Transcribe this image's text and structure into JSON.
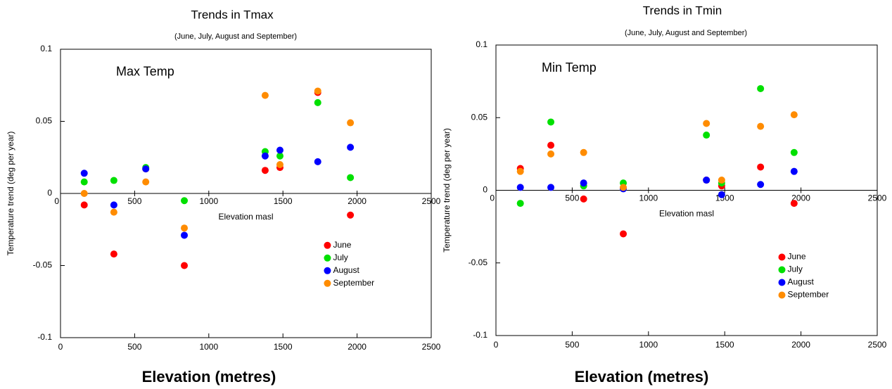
{
  "chart_data": [
    {
      "type": "scatter",
      "title": "Trends in Tmax",
      "subtitle": "(June, July, August and September)",
      "annotation": "Max Temp",
      "x_label": "Elevation masl",
      "y_label": "Temperature trend (deg per year)",
      "footer": "Elevation (metres)",
      "x": [
        160,
        360,
        575,
        835,
        1380,
        1480,
        1735,
        1955
      ],
      "series": [
        {
          "name": "June",
          "color": "#ff0000",
          "values": [
            -0.008,
            -0.042,
            0.017,
            -0.05,
            0.016,
            0.018,
            0.07,
            -0.015
          ]
        },
        {
          "name": "July",
          "color": "#00e000",
          "values": [
            0.008,
            0.009,
            0.018,
            -0.005,
            0.029,
            0.026,
            0.063,
            0.011
          ]
        },
        {
          "name": "August",
          "color": "#0000ff",
          "values": [
            0.014,
            -0.008,
            0.017,
            -0.029,
            0.026,
            0.03,
            0.022,
            0.032
          ]
        },
        {
          "name": "September",
          "color": "#ff8c00",
          "values": [
            0,
            -0.013,
            0.008,
            -0.024,
            0.068,
            0.02,
            0.071,
            0.049
          ]
        }
      ],
      "xlim": [
        0,
        2500
      ],
      "xticks": [
        0,
        500,
        1000,
        1500,
        2000,
        2500
      ],
      "ylim": [
        -0.1,
        0.1
      ],
      "yticks": [
        -0.1,
        -0.05,
        0,
        0.05,
        0.1
      ],
      "legend": "lower right"
    },
    {
      "type": "scatter",
      "title": "Trends in Tmin",
      "subtitle": "(June, July, August and September)",
      "annotation": "Min Temp",
      "x_label": "Elevation masl",
      "y_label": "Temperature trend (deg per year)",
      "footer": "Elevation (metres)",
      "x": [
        160,
        360,
        575,
        835,
        1380,
        1480,
        1735,
        1955
      ],
      "series": [
        {
          "name": "June",
          "color": "#ff0000",
          "values": [
            0.015,
            0.031,
            -0.006,
            -0.03,
            0.007,
            0.003,
            0.016,
            -0.009
          ]
        },
        {
          "name": "July",
          "color": "#00e000",
          "values": [
            -0.009,
            0.047,
            0.003,
            0.005,
            0.038,
            0.005,
            0.07,
            0.026
          ]
        },
        {
          "name": "August",
          "color": "#0000ff",
          "values": [
            0.002,
            0.002,
            0.005,
            0.001,
            0.007,
            -0.003,
            0.004,
            0.013
          ]
        },
        {
          "name": "September",
          "color": "#ff8c00",
          "values": [
            0.013,
            0.025,
            0.026,
            0.002,
            0.046,
            0.007,
            0.044,
            0.052
          ]
        }
      ],
      "xlim": [
        0,
        2500
      ],
      "xticks": [
        0,
        500,
        1000,
        1500,
        2000,
        2500
      ],
      "ylim": [
        -0.1,
        0.1
      ],
      "yticks": [
        -0.1,
        -0.05,
        0,
        0.05,
        0.1
      ],
      "legend": "lower right"
    }
  ]
}
